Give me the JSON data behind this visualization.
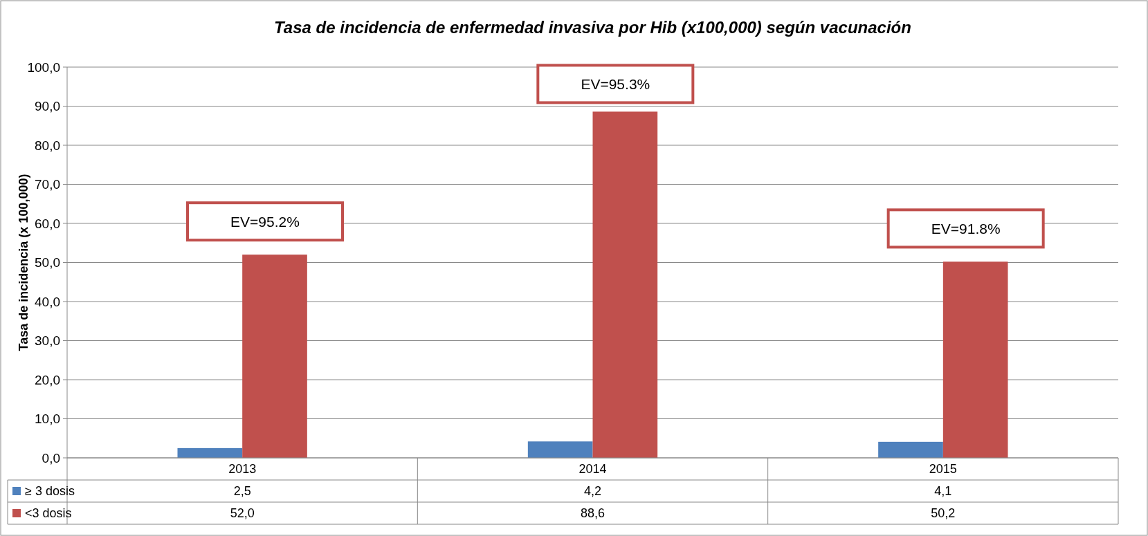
{
  "chart_data": {
    "type": "bar",
    "title": "Tasa de incidencia de enfermedad invasiva por Hib (x100,000) según vacunación",
    "ylabel": "Tasa de incidencia (x 100,000)",
    "categories": [
      "2013",
      "2014",
      "2015"
    ],
    "series": [
      {
        "name": "≥ 3 dosis",
        "color": "#4f81bd",
        "values": [
          2.5,
          4.2,
          4.1
        ],
        "value_labels": [
          "2,5",
          "4,2",
          "4,1"
        ]
      },
      {
        "name": "<3 dosis",
        "color": "#c0504d",
        "values": [
          52.0,
          88.6,
          50.2
        ],
        "value_labels": [
          "52,0",
          "88,6",
          "50,2"
        ]
      }
    ],
    "ylim": [
      0,
      100
    ],
    "yticks": [
      {
        "value": 0,
        "label": "0,0"
      },
      {
        "value": 10,
        "label": "10,0"
      },
      {
        "value": 20,
        "label": "20,0"
      },
      {
        "value": 30,
        "label": "30,0"
      },
      {
        "value": 40,
        "label": "40,0"
      },
      {
        "value": 50,
        "label": "50,0"
      },
      {
        "value": 60,
        "label": "60,0"
      },
      {
        "value": 70,
        "label": "70,0"
      },
      {
        "value": 80,
        "label": "80,0"
      },
      {
        "value": 90,
        "label": "90,0"
      },
      {
        "value": 100,
        "label": "100,0"
      }
    ],
    "grid": "y",
    "legend": "bottom left",
    "annotations": [
      "EV=95.2%",
      "EV=95.3%",
      "EV=91.8%"
    ]
  }
}
